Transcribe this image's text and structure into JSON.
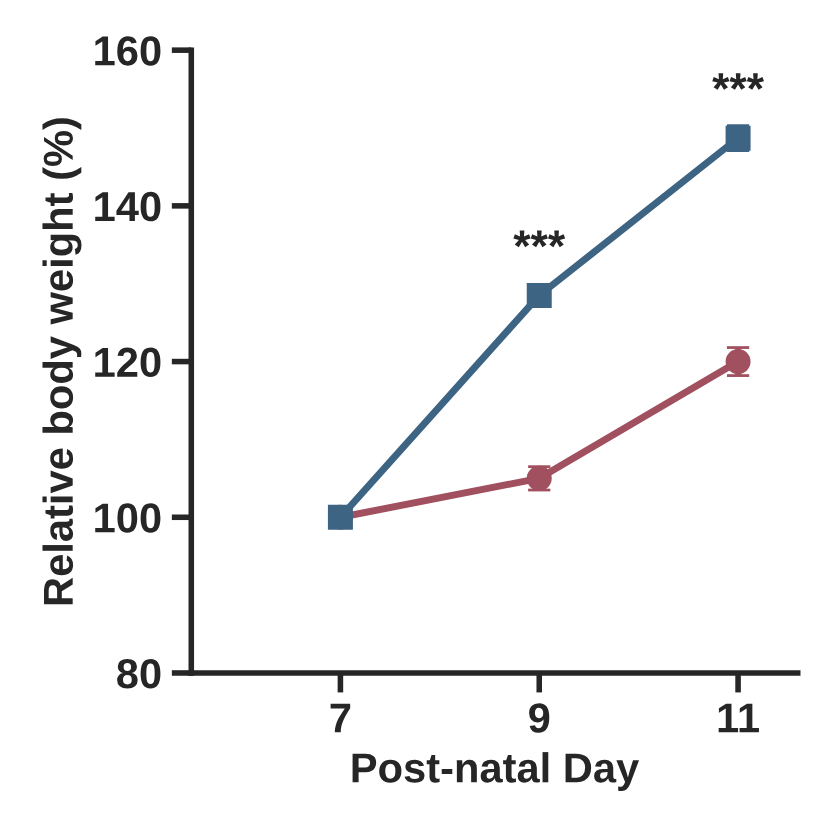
{
  "chart_data": {
    "type": "line",
    "xlabel": "Post-natal Day",
    "ylabel": "Relative body weight (%)",
    "x": [
      7,
      9,
      11
    ],
    "series": [
      {
        "color": "#a1505f",
        "values": [
          100,
          105,
          120
        ],
        "errors": [
          null,
          1.5,
          1.8
        ],
        "marker": "circle"
      },
      {
        "color": "#3e6484",
        "values": [
          100,
          128.5,
          148.7
        ],
        "errors": [
          null,
          1.0,
          1.6
        ],
        "marker": "square"
      }
    ],
    "xlim": [
      5.5,
      11.6
    ],
    "xticks": [
      7,
      9,
      11
    ],
    "ylim": [
      80,
      160
    ],
    "yticks": [
      80,
      100,
      120,
      140,
      160
    ],
    "annotations": [
      {
        "text": "***",
        "x": 9,
        "y": 128.5
      },
      {
        "text": "***",
        "x": 11,
        "y": 148.7
      }
    ],
    "grid": false,
    "legend": false
  }
}
